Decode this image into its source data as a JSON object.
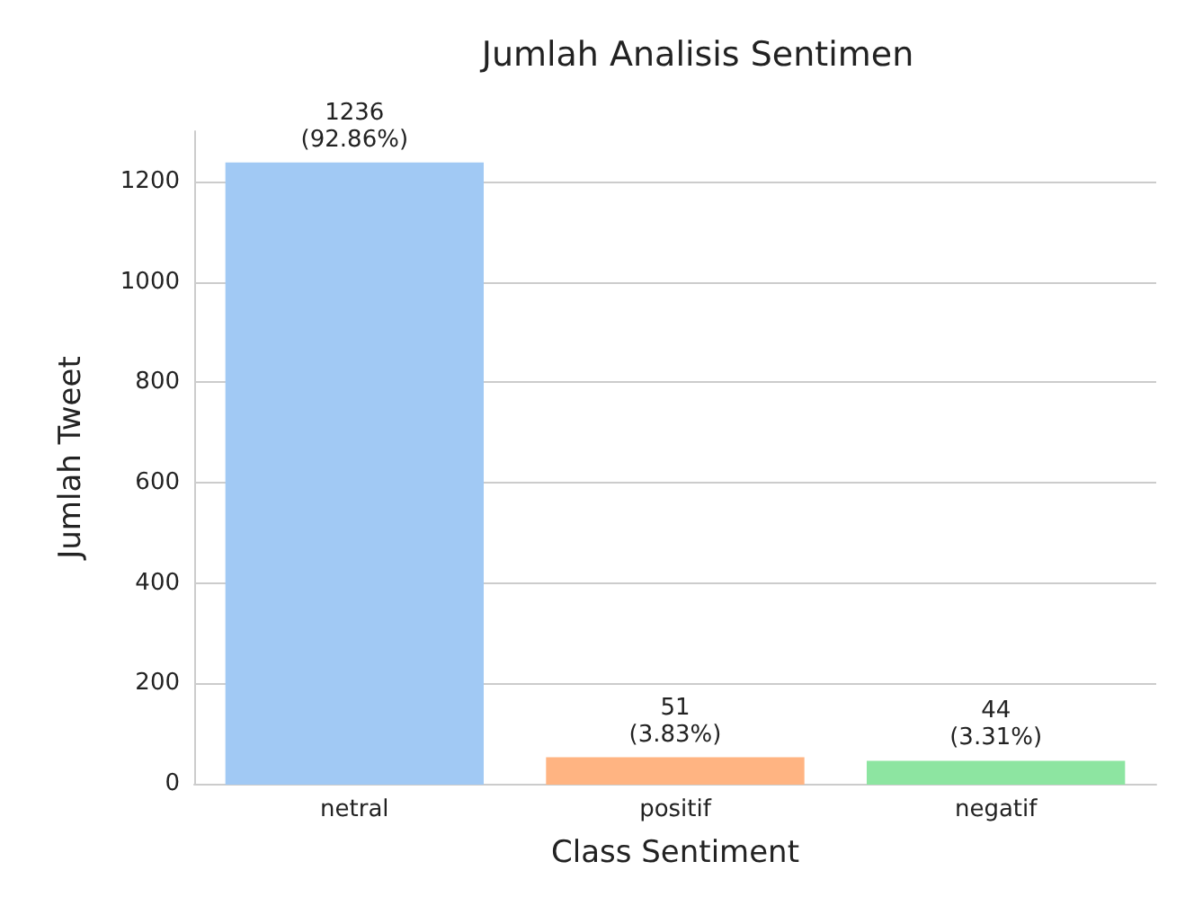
{
  "chart_data": {
    "type": "bar",
    "title": "Jumlah Analisis Sentimen",
    "xlabel": "Class Sentiment",
    "ylabel": "Jumlah Tweet",
    "categories": [
      "netral",
      "positif",
      "negatif"
    ],
    "values": [
      1236,
      51,
      44
    ],
    "colors": [
      "#a1c9f4",
      "#ffb482",
      "#8de5a1"
    ],
    "value_labels": [
      "1236\n(92.86%)",
      "51\n(3.83%)",
      "44\n(3.31%)"
    ],
    "ylim": [
      0,
      1300
    ],
    "yticks": [
      0,
      200,
      400,
      600,
      800,
      1000,
      1200
    ],
    "grid": "y"
  }
}
